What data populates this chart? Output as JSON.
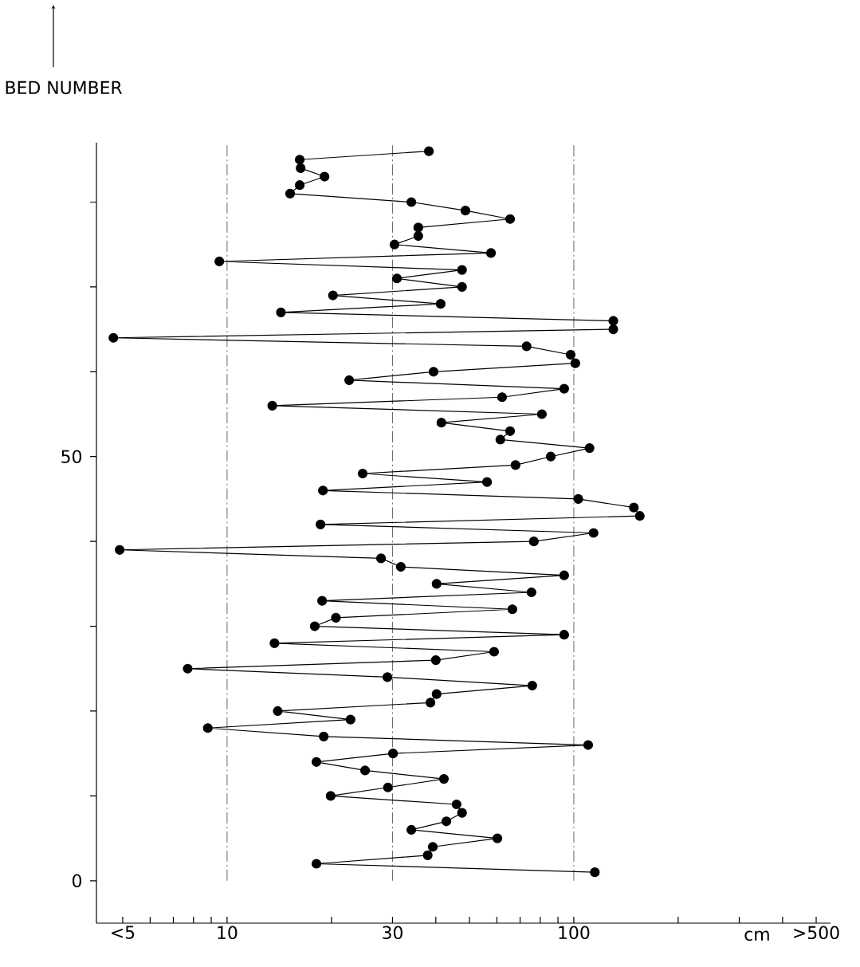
{
  "chart_data": {
    "type": "line",
    "xlabel": "cm",
    "ylabel": "BED NUMBER",
    "log": "x",
    "marker": "circle",
    "line_style": "solid",
    "color": "#000000",
    "x": [
      115,
      18.1,
      37.9,
      39.2,
      60.2,
      34.0,
      42.9,
      47.6,
      45.9,
      19.9,
      29.1,
      42.2,
      25.0,
      18.1,
      30.1,
      110,
      19.0,
      8.8,
      22.7,
      14.0,
      38.6,
      40.2,
      75.9,
      29.0,
      7.7,
      40.0,
      58.9,
      13.7,
      93.8,
      17.9,
      20.6,
      66.5,
      18.8,
      75.5,
      40.2,
      93.8,
      31.7,
      27.8,
      4.9,
      76.7,
      114,
      18.6,
      155,
      149,
      103,
      18.9,
      56.2,
      24.6,
      67.9,
      85.8,
      111,
      61.4,
      65.5,
      41.5,
      80.9,
      13.5,
      62.1,
      93.8,
      22.5,
      39.4,
      101,
      97.9,
      73.1,
      4.7,
      130,
      130,
      14.3,
      41.3,
      20.2,
      47.6,
      30.9,
      47.6,
      9.5,
      57.7,
      30.4,
      35.6,
      35.6,
      65.5,
      48.7,
      34.0,
      15.2,
      16.2,
      19.1,
      16.3,
      16.2,
      38.2
    ],
    "values": [
      1,
      2,
      3,
      4,
      5,
      6,
      7,
      8,
      9,
      10,
      11,
      12,
      13,
      14,
      15,
      16,
      17,
      18,
      19,
      20,
      21,
      22,
      23,
      24,
      25,
      26,
      27,
      28,
      29,
      30,
      31,
      32,
      33,
      34,
      35,
      36,
      37,
      38,
      39,
      40,
      41,
      42,
      43,
      44,
      45,
      46,
      47,
      48,
      49,
      50,
      51,
      52,
      53,
      54,
      55,
      56,
      57,
      58,
      59,
      60,
      61,
      62,
      63,
      64,
      65,
      66,
      67,
      68,
      69,
      70,
      71,
      72,
      73,
      74,
      75,
      76,
      77,
      78,
      79,
      80,
      81,
      82,
      83,
      84,
      85,
      86
    ],
    "xlim": [
      4.2,
      550
    ],
    "ylim": [
      -5,
      87
    ],
    "xticks": [
      {
        "value": 5,
        "label": "<5"
      },
      {
        "value": 6,
        "label": null
      },
      {
        "value": 7,
        "label": null
      },
      {
        "value": 8,
        "label": null
      },
      {
        "value": 9,
        "label": null
      },
      10,
      {
        "value": 20,
        "label": null
      },
      30,
      {
        "value": 40,
        "label": null
      },
      {
        "value": 50,
        "label": null
      },
      {
        "value": 60,
        "label": null
      },
      {
        "value": 70,
        "label": null
      },
      {
        "value": 80,
        "label": null
      },
      {
        "value": 90,
        "label": null
      },
      100,
      {
        "value": 200,
        "label": null
      },
      {
        "value": 300,
        "label": null
      },
      {
        "value": 400,
        "label": null
      },
      {
        "value": 500,
        "label": ">500"
      }
    ],
    "yticks": [
      0,
      {
        "value": 10,
        "label": null
      },
      {
        "value": 20,
        "label": null
      },
      {
        "value": 30,
        "label": null
      },
      {
        "value": 40,
        "label": null
      },
      50,
      {
        "value": 60,
        "label": null
      },
      {
        "value": 70,
        "label": null
      },
      {
        "value": 80,
        "label": null
      }
    ],
    "ref_lines": [
      {
        "axis": "x",
        "value": 10,
        "line_style": "dashed"
      },
      {
        "axis": "x",
        "value": 30,
        "line_style": "dashed"
      },
      {
        "axis": "x",
        "value": 100,
        "line_style": "dashed"
      }
    ]
  }
}
